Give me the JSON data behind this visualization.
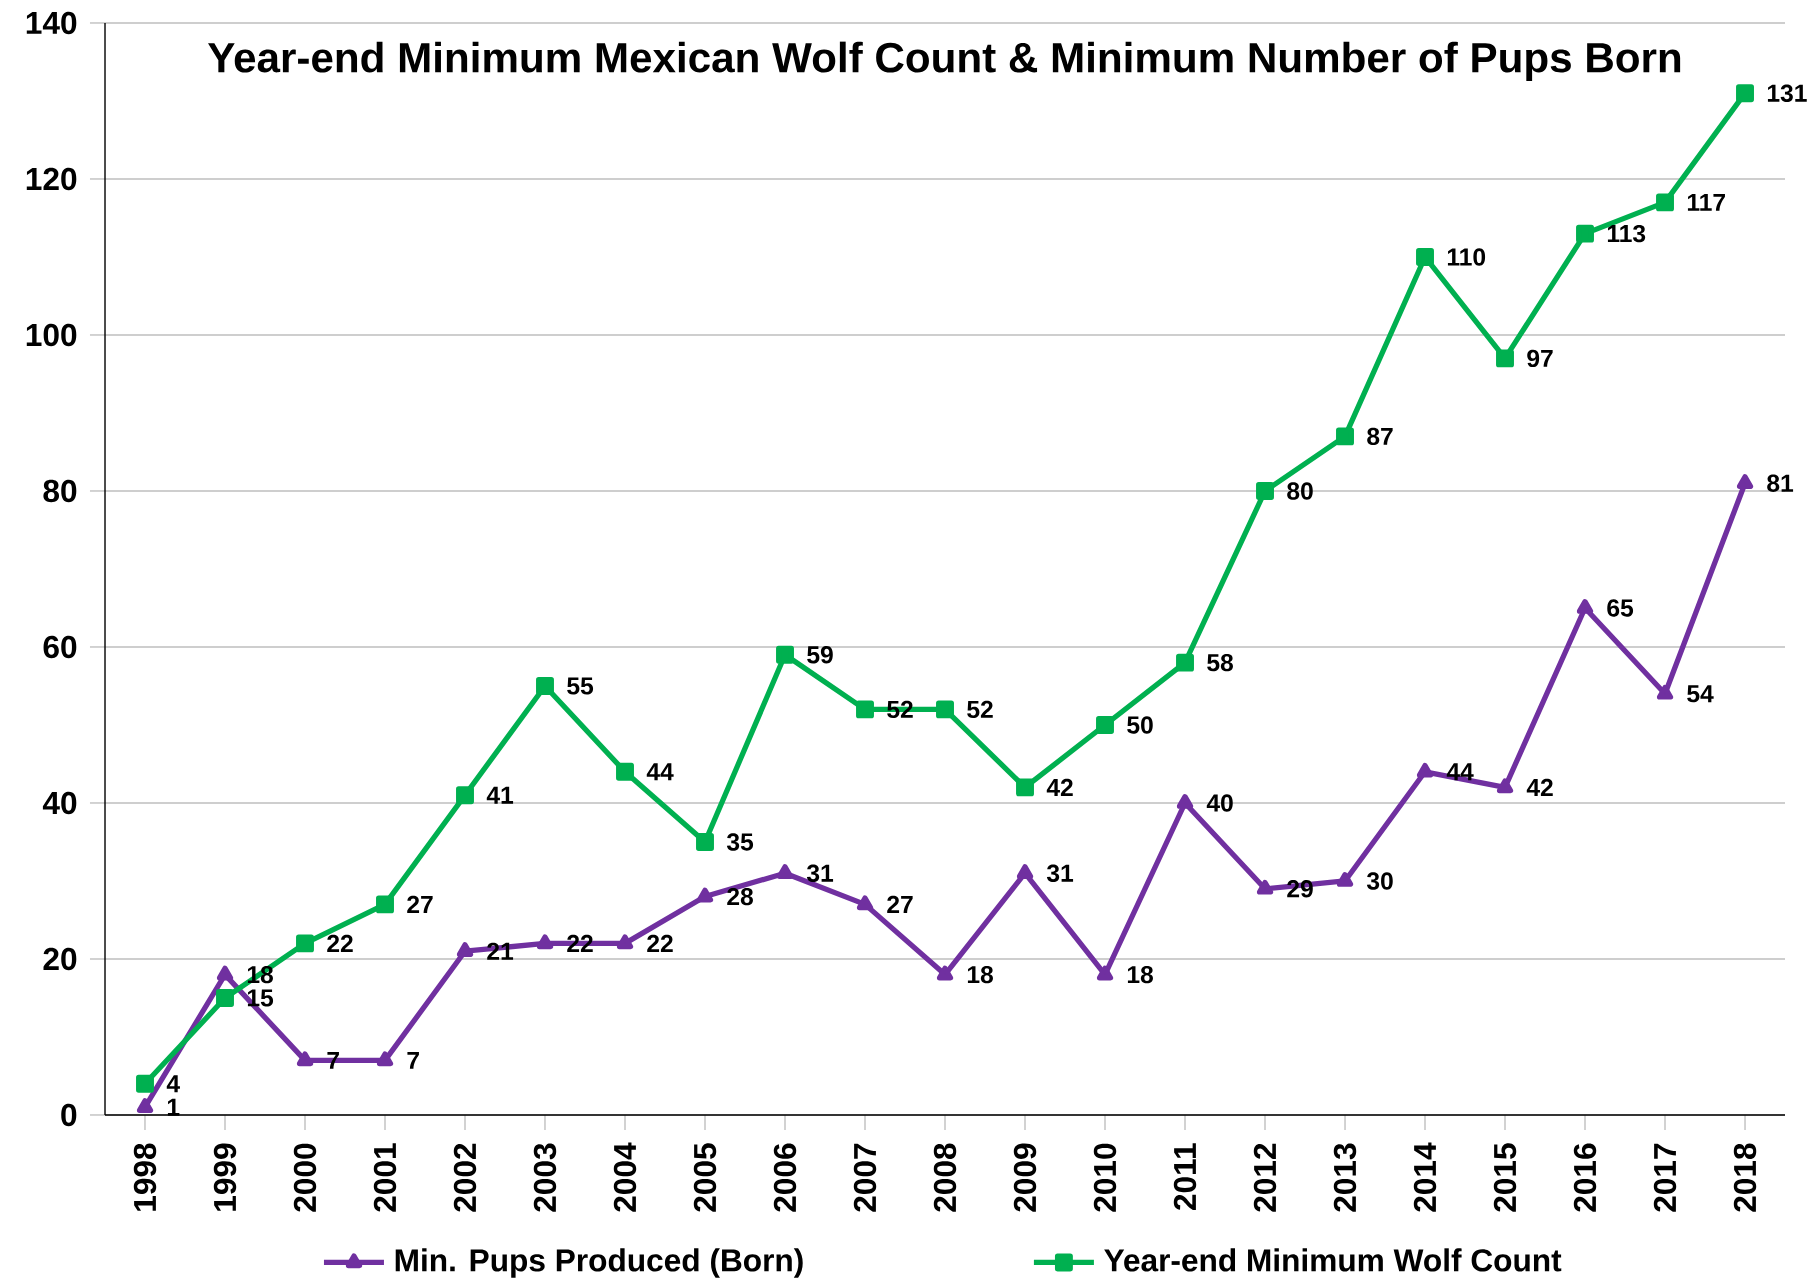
{
  "chart_data": {
    "type": "line",
    "title": "Year-end Minimum Mexican Wolf Count & Minimum Number of Pups Born",
    "categories": [
      "1998",
      "1999",
      "2000",
      "2001",
      "2002",
      "2003",
      "2004",
      "2005",
      "2006",
      "2007",
      "2008",
      "2009",
      "2010",
      "2011",
      "2012",
      "2013",
      "2014",
      "2015",
      "2016",
      "2017",
      "2018"
    ],
    "series": [
      {
        "name": "Min. Pups Produced (Born)",
        "color": "#7030a0",
        "marker": "triangle",
        "values": [
          1,
          18,
          7,
          7,
          21,
          22,
          22,
          28,
          31,
          27,
          18,
          31,
          18,
          40,
          29,
          30,
          44,
          42,
          65,
          54,
          81
        ]
      },
      {
        "name": "Year-end Minimum Wolf Count",
        "color": "#00b050",
        "marker": "square",
        "values": [
          4,
          15,
          22,
          27,
          41,
          55,
          44,
          35,
          59,
          52,
          52,
          42,
          50,
          58,
          80,
          87,
          110,
          97,
          113,
          117,
          131
        ]
      }
    ],
    "ylim": [
      0,
      140
    ],
    "yticks": [
      0,
      20,
      40,
      60,
      80,
      100,
      120,
      140
    ],
    "grid": "y",
    "legend": "bottom",
    "data_labels": true
  }
}
